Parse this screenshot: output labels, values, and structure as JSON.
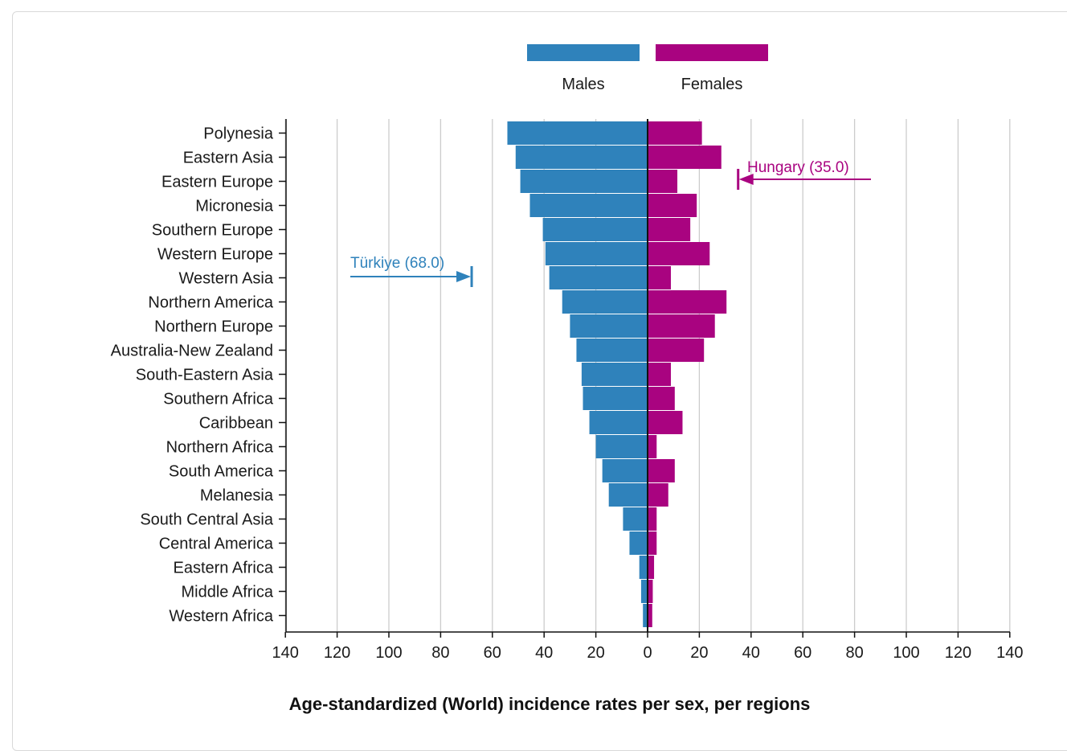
{
  "colors": {
    "males": "#2f82bb",
    "females": "#a90380",
    "axis": "#111111",
    "grid": "#cccccc"
  },
  "legend": {
    "males": "Males",
    "females": "Females"
  },
  "chart_data": {
    "type": "bar",
    "orientation": "horizontal-diverging",
    "title": "Age-standardized (World) incidence rates per sex, per regions",
    "xlim": [
      -140,
      140
    ],
    "xticks": [
      "140",
      "120",
      "100",
      "80",
      "60",
      "40",
      "20",
      "0",
      "20",
      "40",
      "60",
      "80",
      "100",
      "120",
      "140"
    ],
    "grid": true,
    "legend_position": "top-center",
    "categories": [
      "Polynesia",
      "Eastern Asia",
      "Eastern Europe",
      "Micronesia",
      "Southern Europe",
      "Western Europe",
      "Western Asia",
      "Northern America",
      "Northern Europe",
      "Australia-New Zealand",
      "South-Eastern Asia",
      "Southern Africa",
      "Caribbean",
      "Northern Africa",
      "South America",
      "Melanesia",
      "South Central Asia",
      "Central America",
      "Eastern Africa",
      "Middle Africa",
      "Western Africa"
    ],
    "series": [
      {
        "name": "Males",
        "values": [
          54.2,
          51.0,
          49.2,
          45.5,
          40.5,
          39.5,
          38.0,
          33.0,
          30.0,
          27.5,
          25.5,
          25.0,
          22.5,
          20.0,
          17.5,
          15.0,
          9.5,
          7.0,
          3.2,
          2.5,
          1.8
        ]
      },
      {
        "name": "Females",
        "values": [
          21.0,
          28.5,
          11.5,
          19.0,
          16.5,
          24.0,
          9.0,
          30.5,
          26.0,
          21.8,
          9.0,
          10.5,
          13.5,
          3.5,
          10.5,
          8.0,
          3.5,
          3.5,
          2.5,
          2.0,
          1.8
        ]
      }
    ],
    "annotations": [
      {
        "text": "Türkiye (68.0)",
        "series": "Males",
        "value": 68.0
      },
      {
        "text": "Hungary (35.0)",
        "series": "Females",
        "value": 35.0
      }
    ]
  }
}
